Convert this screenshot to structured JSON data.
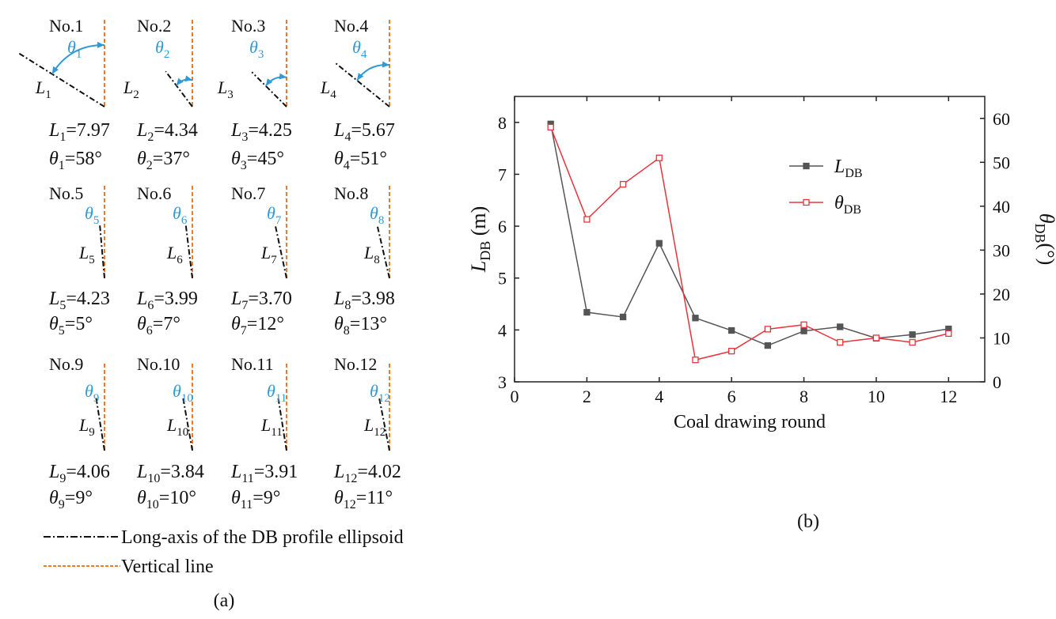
{
  "panel_a": {
    "label": "(a)",
    "legend": {
      "long_axis": "Long-axis of the DB profile ellipsoid",
      "vertical": "Vertical line"
    },
    "panels": [
      {
        "no": "No.1",
        "i": "1",
        "L": "7.97",
        "theta_value": "58",
        "deg": "°"
      },
      {
        "no": "No.2",
        "i": "2",
        "L": "4.34",
        "theta_value": "37",
        "deg": "°"
      },
      {
        "no": "No.3",
        "i": "3",
        "L": "4.25",
        "theta_value": "45",
        "deg": "°"
      },
      {
        "no": "No.4",
        "i": "4",
        "L": "5.67",
        "theta_value": "51",
        "deg": "°"
      },
      {
        "no": "No.5",
        "i": "5",
        "L": "4.23",
        "theta_value": "5",
        "deg": "°"
      },
      {
        "no": "No.6",
        "i": "6",
        "L": "3.99",
        "theta_value": "7",
        "deg": "°"
      },
      {
        "no": "No.7",
        "i": "7",
        "L": "3.70",
        "theta_value": "12",
        "deg": "°"
      },
      {
        "no": "No.8",
        "i": "8",
        "L": "3.98",
        "theta_value": "13",
        "deg": "°"
      },
      {
        "no": "No.9",
        "i": "9",
        "L": "4.06",
        "theta_value": "9",
        "deg": "°"
      },
      {
        "no": "No.10",
        "i": "10",
        "L": "3.84",
        "theta_value": "10",
        "deg": "°"
      },
      {
        "no": "No.11",
        "i": "11",
        "L": "3.91",
        "theta_value": "9",
        "deg": "°"
      },
      {
        "no": "No.12",
        "i": "12",
        "L": "4.02",
        "theta_value": "11",
        "deg": "°"
      }
    ],
    "colors": {
      "vertical": "#f07b22",
      "angle": "#2f9ad6",
      "axis": "#111111"
    }
  },
  "chart_data": {
    "type": "line",
    "panel_label": "(b)",
    "xlabel": "Coal drawing round",
    "ylabel_left": "L",
    "ylabel_left_sub": "DB",
    "ylabel_left_unit": "(m)",
    "ylabel_right": "θ",
    "ylabel_right_sub": "DB",
    "ylabel_right_unit": "(°)",
    "xlim": [
      0,
      13
    ],
    "ylim_left": [
      3,
      8.5
    ],
    "ylim_right": [
      0,
      65
    ],
    "xticks": [
      0,
      2,
      4,
      6,
      8,
      10,
      12
    ],
    "yticks_left": [
      3,
      4,
      5,
      6,
      7,
      8
    ],
    "yticks_right": [
      0,
      10,
      20,
      30,
      40,
      50,
      60
    ],
    "x": [
      1,
      2,
      3,
      4,
      5,
      6,
      7,
      8,
      9,
      10,
      11,
      12
    ],
    "series": [
      {
        "name": "L",
        "sub": "DB",
        "axis": "left",
        "color": "#555555",
        "marker": "filled-square",
        "values": [
          7.97,
          4.34,
          4.25,
          5.67,
          4.23,
          3.99,
          3.7,
          3.98,
          4.06,
          3.84,
          3.91,
          4.02
        ]
      },
      {
        "name": "θ",
        "sub": "DB",
        "axis": "right",
        "color": "#e8333b",
        "marker": "open-square",
        "values": [
          58,
          37,
          45,
          51,
          5,
          7,
          12,
          13,
          9,
          10,
          9,
          11
        ]
      }
    ]
  }
}
